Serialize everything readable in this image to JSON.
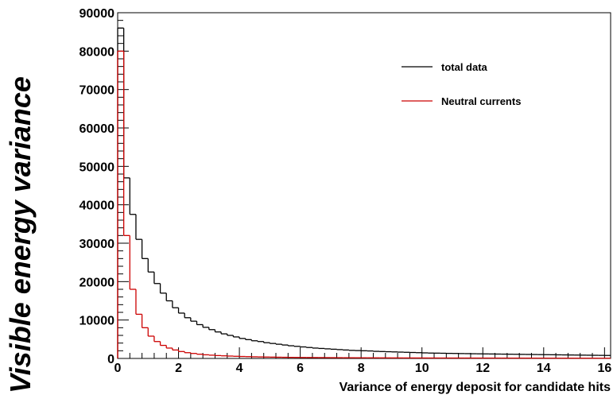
{
  "chart_data": {
    "type": "histogram",
    "title": "",
    "ylabel": "Visible energy variance",
    "xlabel": "Variance of energy deposit for candidate hits",
    "xlim": [
      0,
      16.2
    ],
    "ylim": [
      0,
      90000
    ],
    "xticks": [
      "0",
      "2",
      "4",
      "6",
      "8",
      "10",
      "12",
      "14",
      "16"
    ],
    "yticks": [
      "0",
      "10000",
      "20000",
      "30000",
      "40000",
      "50000",
      "60000",
      "70000",
      "80000",
      "90000"
    ],
    "bin_width": 0.2,
    "legend_position": "top-right",
    "grid": false,
    "series": [
      {
        "name": "total data",
        "color": "#000000",
        "values": [
          86000,
          47000,
          37500,
          31000,
          26000,
          22500,
          19500,
          17000,
          15000,
          13200,
          11800,
          10600,
          9700,
          8800,
          8100,
          7500,
          6900,
          6400,
          6000,
          5600,
          5200,
          4900,
          4600,
          4400,
          4100,
          3900,
          3700,
          3500,
          3300,
          3150,
          3000,
          2850,
          2700,
          2600,
          2500,
          2400,
          2300,
          2200,
          2100,
          2050,
          2000,
          1950,
          1850,
          1800,
          1750,
          1700,
          1650,
          1600,
          1550,
          1500,
          1450,
          1400,
          1380,
          1350,
          1320,
          1300,
          1270,
          1250,
          1220,
          1200,
          1180,
          1160,
          1140,
          1120,
          1100,
          1080,
          1060,
          1040,
          1020,
          1000,
          980,
          960,
          940,
          920,
          900,
          880,
          860,
          840,
          820,
          800,
          780
        ]
      },
      {
        "name": "Neutral currents",
        "color": "#cc0000",
        "values": [
          80000,
          32000,
          18000,
          11500,
          8000,
          5800,
          4400,
          3400,
          2700,
          2200,
          1800,
          1500,
          1300,
          1100,
          950,
          850,
          750,
          680,
          620,
          560,
          510,
          470,
          430,
          400,
          370,
          345,
          320,
          300,
          280,
          265,
          250,
          240,
          230,
          220,
          210,
          200,
          190,
          180,
          175,
          170,
          165,
          160,
          155,
          150,
          145,
          140,
          135,
          130,
          127,
          124,
          121,
          118,
          115,
          112,
          110,
          108,
          106,
          104,
          102,
          100,
          98,
          96,
          94,
          92,
          90,
          88,
          86,
          84,
          82,
          80,
          78,
          76,
          74,
          72,
          70,
          68,
          66,
          64,
          62,
          60,
          58
        ]
      }
    ]
  }
}
